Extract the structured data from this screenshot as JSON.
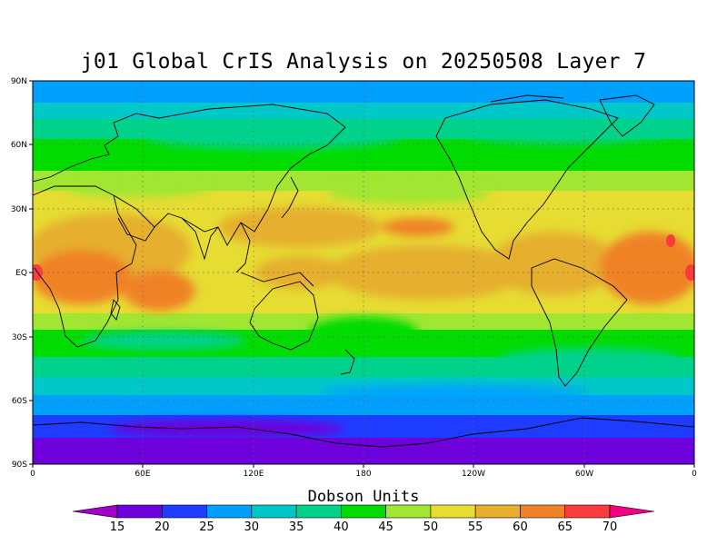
{
  "title": "j01 Global CrIS Analysis on 20250508 Layer 7",
  "lat_labels": [
    "90N",
    "60N",
    "30N",
    "EQ",
    "30S",
    "60S",
    "90S"
  ],
  "lon_labels": [
    "0",
    "60E",
    "120E",
    "180",
    "120W",
    "60W",
    "0"
  ],
  "colorbar": {
    "label": "Dobson Units",
    "ticks": [
      "15",
      "20",
      "25",
      "30",
      "35",
      "40",
      "45",
      "50",
      "55",
      "60",
      "65",
      "70"
    ],
    "colors": [
      "#a000c8",
      "#6e00dc",
      "#1e3cff",
      "#00a0ff",
      "#00c8c8",
      "#00d28c",
      "#00dc00",
      "#a0e632",
      "#e6dc32",
      "#e6af2d",
      "#f08228",
      "#fa3c3c",
      "#f00082"
    ]
  }
}
